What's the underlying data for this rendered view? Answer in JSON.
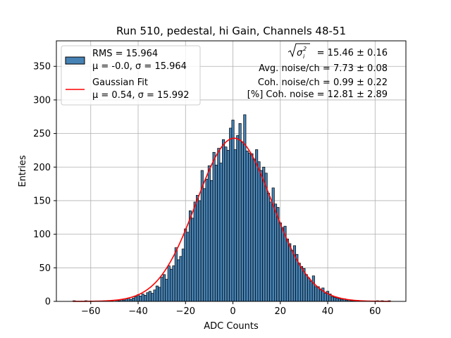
{
  "chart_data": {
    "type": "bar",
    "title": "Run 510, pedestal, hi Gain, Channels 48-51",
    "xlabel": "ADC Counts",
    "ylabel": "Entries",
    "xlim": [
      -74.5,
      73.0
    ],
    "ylim": [
      0,
      388
    ],
    "xticks": [
      -60,
      -40,
      -20,
      0,
      20,
      40,
      60
    ],
    "xtick_labels": [
      "−60",
      "−40",
      "−20",
      "0",
      "20",
      "40",
      "60"
    ],
    "yticks": [
      0,
      50,
      100,
      150,
      200,
      250,
      300,
      350
    ],
    "grid": true,
    "bin_width": 1,
    "bin_start": -67.5,
    "bar_color": "#4682b4",
    "bar_edge_color": "#000000",
    "fit_color": "#ff0000",
    "histogram": {
      "name": "RMS = 15.964",
      "bins": [
        {
          "x": -67,
          "y": 1
        },
        {
          "x": -62,
          "y": 1
        },
        {
          "x": -54,
          "y": 1
        },
        {
          "x": -51,
          "y": 1
        },
        {
          "x": -49,
          "y": 2
        },
        {
          "x": -48,
          "y": 1
        },
        {
          "x": -47,
          "y": 3
        },
        {
          "x": -46,
          "y": 2
        },
        {
          "x": -45,
          "y": 4
        },
        {
          "x": -44,
          "y": 5
        },
        {
          "x": -43,
          "y": 3
        },
        {
          "x": -42,
          "y": 5
        },
        {
          "x": -41,
          "y": 7
        },
        {
          "x": -40,
          "y": 10
        },
        {
          "x": -39,
          "y": 8
        },
        {
          "x": -38,
          "y": 11
        },
        {
          "x": -37,
          "y": 9
        },
        {
          "x": -36,
          "y": 13
        },
        {
          "x": -35,
          "y": 15
        },
        {
          "x": -34,
          "y": 12
        },
        {
          "x": -33,
          "y": 17
        },
        {
          "x": -32,
          "y": 23
        },
        {
          "x": -31,
          "y": 21
        },
        {
          "x": -30,
          "y": 36
        },
        {
          "x": -29,
          "y": 40
        },
        {
          "x": -28,
          "y": 33
        },
        {
          "x": -27,
          "y": 53
        },
        {
          "x": -26,
          "y": 48
        },
        {
          "x": -25,
          "y": 53
        },
        {
          "x": -24,
          "y": 80
        },
        {
          "x": -23,
          "y": 62
        },
        {
          "x": -22,
          "y": 67
        },
        {
          "x": -21,
          "y": 78
        },
        {
          "x": -20,
          "y": 108
        },
        {
          "x": -19,
          "y": 103
        },
        {
          "x": -18,
          "y": 135
        },
        {
          "x": -17,
          "y": 124
        },
        {
          "x": -16,
          "y": 148
        },
        {
          "x": -15,
          "y": 158
        },
        {
          "x": -14,
          "y": 150
        },
        {
          "x": -13,
          "y": 195
        },
        {
          "x": -12,
          "y": 168
        },
        {
          "x": -11,
          "y": 182
        },
        {
          "x": -10,
          "y": 202
        },
        {
          "x": -9,
          "y": 180
        },
        {
          "x": -8,
          "y": 222
        },
        {
          "x": -7,
          "y": 203
        },
        {
          "x": -6,
          "y": 228
        },
        {
          "x": -5,
          "y": 206
        },
        {
          "x": -4,
          "y": 241
        },
        {
          "x": -3,
          "y": 230
        },
        {
          "x": -2,
          "y": 225
        },
        {
          "x": -1,
          "y": 258
        },
        {
          "x": 0,
          "y": 270
        },
        {
          "x": 1,
          "y": 226
        },
        {
          "x": 2,
          "y": 247
        },
        {
          "x": 3,
          "y": 265
        },
        {
          "x": 4,
          "y": 237
        },
        {
          "x": 5,
          "y": 278
        },
        {
          "x": 6,
          "y": 224
        },
        {
          "x": 7,
          "y": 221
        },
        {
          "x": 8,
          "y": 220
        },
        {
          "x": 9,
          "y": 212
        },
        {
          "x": 10,
          "y": 226
        },
        {
          "x": 11,
          "y": 208
        },
        {
          "x": 12,
          "y": 195
        },
        {
          "x": 13,
          "y": 200
        },
        {
          "x": 14,
          "y": 191
        },
        {
          "x": 15,
          "y": 161
        },
        {
          "x": 16,
          "y": 148
        },
        {
          "x": 17,
          "y": 169
        },
        {
          "x": 18,
          "y": 145
        },
        {
          "x": 19,
          "y": 140
        },
        {
          "x": 20,
          "y": 117
        },
        {
          "x": 21,
          "y": 110
        },
        {
          "x": 22,
          "y": 112
        },
        {
          "x": 23,
          "y": 93
        },
        {
          "x": 24,
          "y": 86
        },
        {
          "x": 25,
          "y": 76
        },
        {
          "x": 26,
          "y": 83
        },
        {
          "x": 27,
          "y": 70
        },
        {
          "x": 28,
          "y": 57
        },
        {
          "x": 29,
          "y": 52
        },
        {
          "x": 30,
          "y": 49
        },
        {
          "x": 31,
          "y": 40
        },
        {
          "x": 32,
          "y": 35
        },
        {
          "x": 33,
          "y": 30
        },
        {
          "x": 34,
          "y": 38
        },
        {
          "x": 35,
          "y": 22
        },
        {
          "x": 36,
          "y": 22
        },
        {
          "x": 37,
          "y": 17
        },
        {
          "x": 38,
          "y": 20
        },
        {
          "x": 39,
          "y": 12
        },
        {
          "x": 40,
          "y": 15
        },
        {
          "x": 41,
          "y": 11
        },
        {
          "x": 42,
          "y": 7
        },
        {
          "x": 43,
          "y": 6
        },
        {
          "x": 44,
          "y": 5
        },
        {
          "x": 45,
          "y": 4
        },
        {
          "x": 46,
          "y": 3
        },
        {
          "x": 47,
          "y": 4
        },
        {
          "x": 48,
          "y": 2
        },
        {
          "x": 49,
          "y": 2
        },
        {
          "x": 50,
          "y": 1
        },
        {
          "x": 51,
          "y": 1
        },
        {
          "x": 52,
          "y": 1
        },
        {
          "x": 55,
          "y": 1
        },
        {
          "x": 61,
          "y": 1
        },
        {
          "x": 63,
          "y": 1
        },
        {
          "x": 66,
          "y": 1
        }
      ]
    },
    "fit": {
      "name": "Gaussian Fit",
      "mu": 0.54,
      "sigma": 15.992,
      "amplitude": 243,
      "range": [
        -67.5,
        66.5
      ]
    },
    "legend": {
      "position": "upper-left",
      "entries": [
        {
          "line1": "RMS = 15.964",
          "line2": "μ = -0.0, σ = 15.964"
        },
        {
          "line1": "Gaussian Fit",
          "line2": "μ = 0.54, σ = 15.992"
        }
      ]
    },
    "annotations": {
      "sigma_total": "= 15.46 ± 0.16",
      "avg_noise": "Avg. noise/ch = 7.73 ± 0.08",
      "coh_noise": "Coh. noise/ch = 0.99 ± 0.22",
      "pct_coh_noise": "[%] Coh. noise = 12.81 ± 2.89"
    }
  }
}
